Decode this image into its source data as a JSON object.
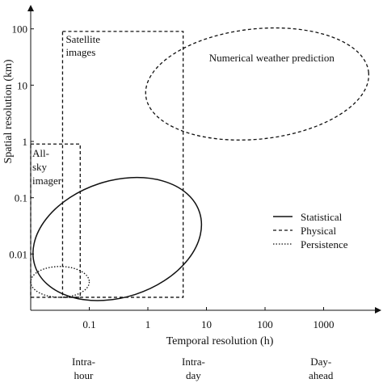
{
  "chart_data": {
    "type": "scatter",
    "xlabel": "Temporal resolution (h)",
    "ylabel": "Spatial resolution (km)",
    "x_scale": "log",
    "y_scale": "log",
    "xlim": [
      0.01,
      8000
    ],
    "ylim": [
      0.001,
      250
    ],
    "x_ticks": [
      {
        "value": 0.1,
        "label": "0.1"
      },
      {
        "value": 1,
        "label": "1"
      },
      {
        "value": 10,
        "label": "10"
      },
      {
        "value": 100,
        "label": "100"
      },
      {
        "value": 1000,
        "label": "1000"
      }
    ],
    "y_ticks": [
      {
        "value": 0.01,
        "label": "0.01"
      },
      {
        "value": 0.1,
        "label": "0.1"
      },
      {
        "value": 1,
        "label": "1"
      },
      {
        "value": 10,
        "label": "10"
      },
      {
        "value": 100,
        "label": "100"
      }
    ],
    "regions": [
      {
        "label": "Satellite images",
        "lines": [
          "Satellite",
          "images"
        ],
        "style": "dashed",
        "shape": "rectangle",
        "x": [
          0.035,
          4
        ],
        "y": [
          0.0017,
          90
        ]
      },
      {
        "label": "All-sky imager",
        "lines": [
          "All-",
          "sky",
          "imager"
        ],
        "style": "dashed",
        "shape": "rectangle",
        "x": [
          0.01,
          0.07
        ],
        "y": [
          0.0017,
          0.9
        ]
      },
      {
        "label": "Numerical weather prediction",
        "lines": [
          "Numerical weather prediction"
        ],
        "style": "dashed",
        "shape": "ellipse",
        "x": [
          0.9,
          6000
        ],
        "y": [
          1.1,
          100
        ]
      },
      {
        "label": "Statistical",
        "lines": [],
        "style": "solid",
        "shape": "ellipse",
        "x": [
          0.01,
          9
        ],
        "y": [
          0.0017,
          0.2
        ]
      },
      {
        "label": "Persistence",
        "lines": [],
        "style": "dotted",
        "shape": "ellipse",
        "x": [
          0.01,
          0.1
        ],
        "y": [
          0.0017,
          0.006
        ]
      }
    ],
    "legend": {
      "position": "right",
      "entries": [
        {
          "label": "Statistical",
          "style": "solid"
        },
        {
          "label": "Physical",
          "style": "dashed"
        },
        {
          "label": "Persistence",
          "style": "dotted"
        }
      ]
    },
    "horizons": [
      {
        "lines": [
          "Intra-",
          "hour"
        ],
        "x": 0.08
      },
      {
        "lines": [
          "Intra-",
          "day"
        ],
        "x": 6
      },
      {
        "lines": [
          "Day-",
          "ahead"
        ],
        "x": 900
      }
    ],
    "grid": false
  }
}
